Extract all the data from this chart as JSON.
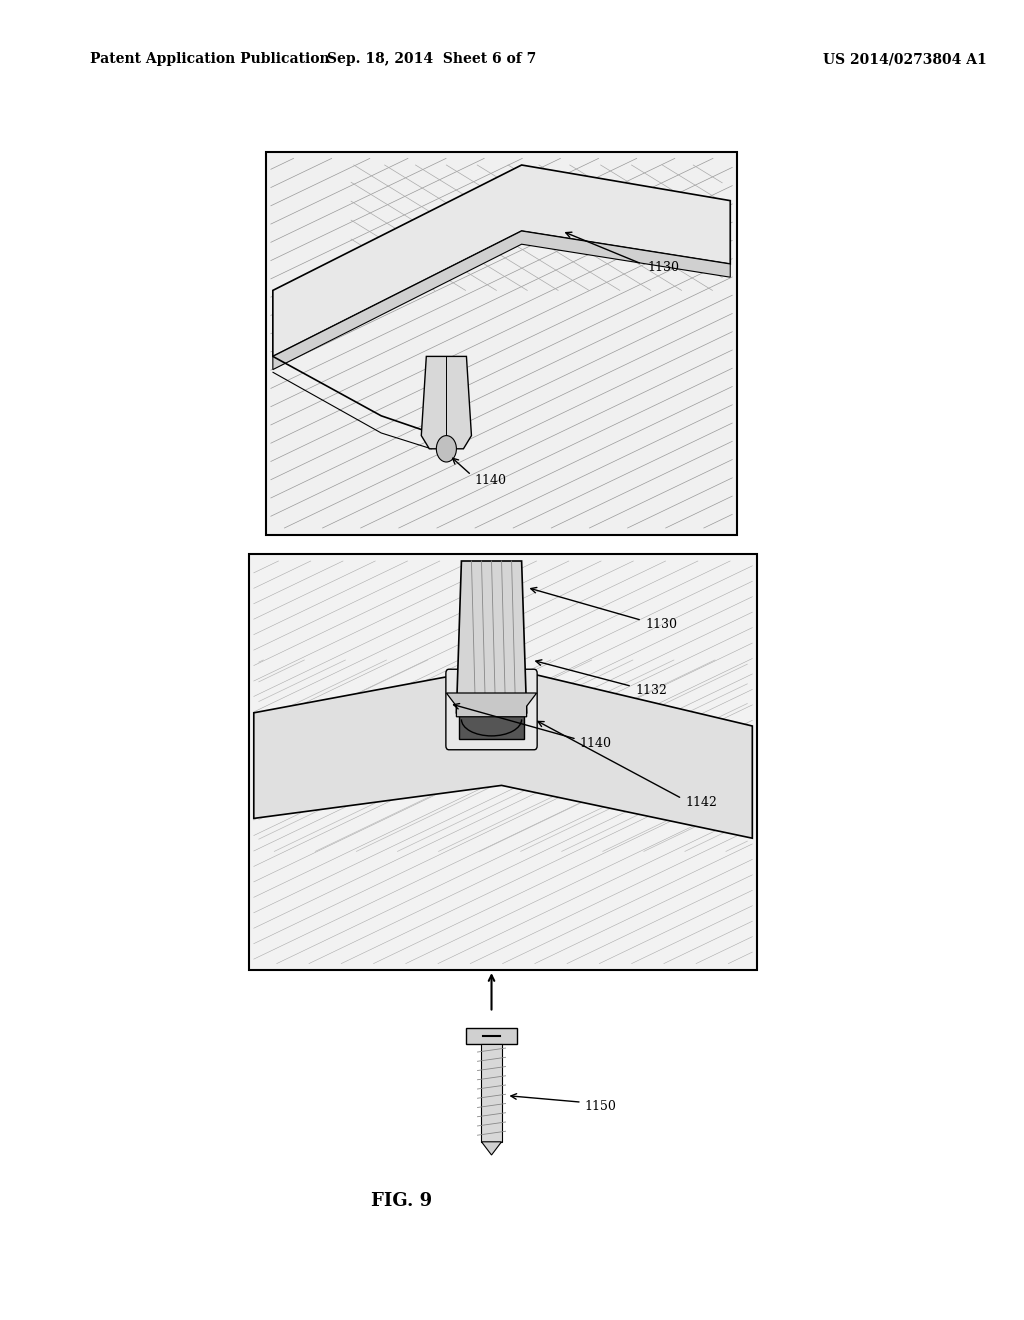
{
  "bg_color": "#ffffff",
  "header_left": "Patent Application Publication",
  "header_mid": "Sep. 18, 2014  Sheet 6 of 7",
  "header_right": "US 2014/0273804 A1",
  "fig_label": "FIG. 9"
}
